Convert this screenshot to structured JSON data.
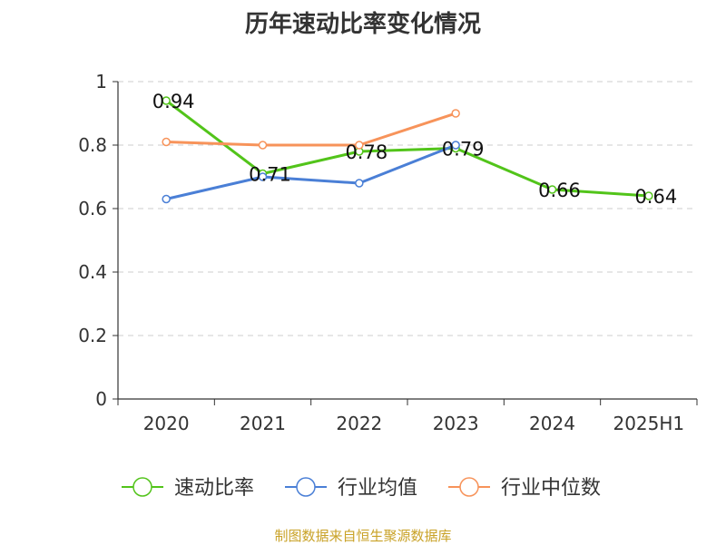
{
  "chart_data": {
    "type": "line",
    "title": "历年速动比率变化情况",
    "categories": [
      "2020",
      "2021",
      "2022",
      "2023",
      "2024",
      "2025H1"
    ],
    "ylim": [
      0,
      1
    ],
    "yticks": [
      "0",
      "0.2",
      "0.4",
      "0.6",
      "0.8",
      "1"
    ],
    "grid": true,
    "legend_position": "bottom",
    "series": [
      {
        "name": "速动比率",
        "color": "#52c41a",
        "values": [
          0.94,
          0.71,
          0.78,
          0.79,
          0.66,
          0.64
        ],
        "labels": [
          "0.94",
          "0.71",
          "0.78",
          "0.79",
          "0.66",
          "0.64"
        ]
      },
      {
        "name": "行业均值",
        "color": "#4a7fd6",
        "values": [
          0.63,
          0.7,
          0.68,
          0.8,
          null,
          null
        ]
      },
      {
        "name": "行业中位数",
        "color": "#f7935a",
        "values": [
          0.81,
          0.8,
          0.8,
          0.9,
          null,
          null
        ]
      }
    ]
  },
  "source_text": "制图数据来自恒生聚源数据库"
}
